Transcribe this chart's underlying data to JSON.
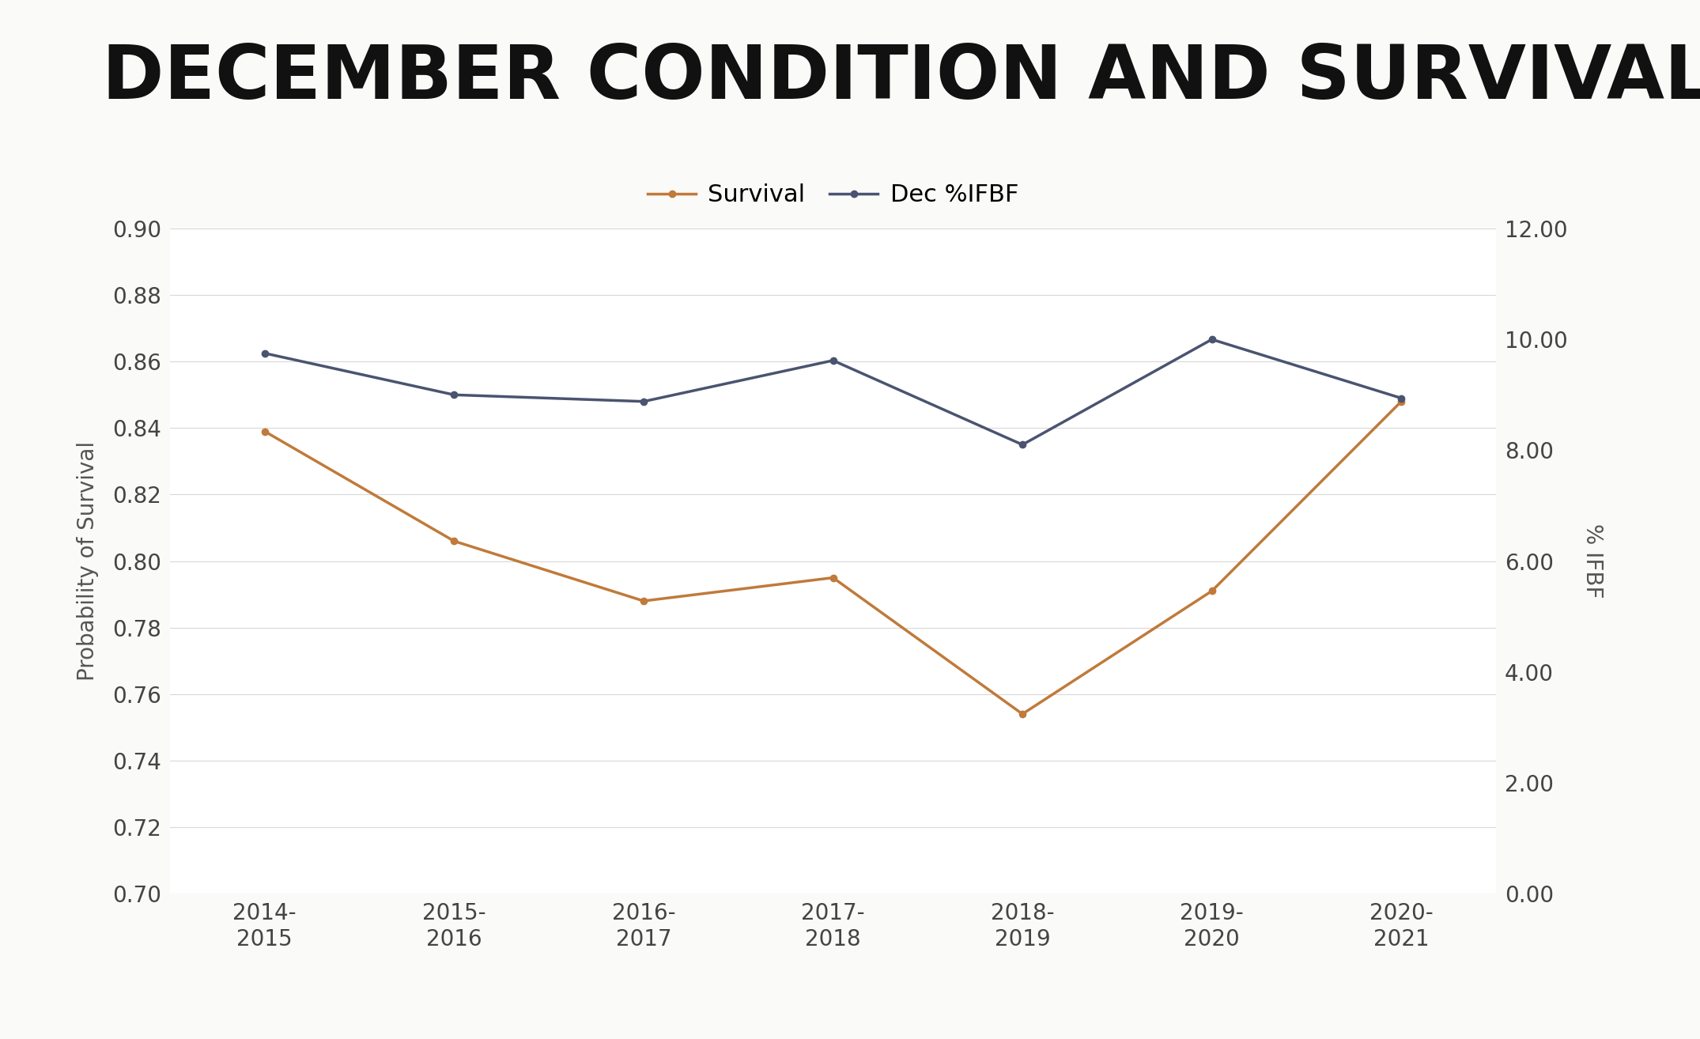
{
  "title": "DECEMBER CONDITION AND SURVIVAL",
  "categories": [
    "2014-\n2015",
    "2015-\n2016",
    "2016-\n2017",
    "2017-\n2018",
    "2018-\n2019",
    "2019-\n2020",
    "2020-\n2021"
  ],
  "survival": [
    0.839,
    0.806,
    0.788,
    0.795,
    0.754,
    0.791,
    0.848
  ],
  "dec_ifbf": [
    9.75,
    9.0,
    8.88,
    9.62,
    8.1,
    10.0,
    8.94
  ],
  "survival_color": "#C07A3A",
  "dec_ifbf_color": "#4A5470",
  "left_ylim": [
    0.7,
    0.9
  ],
  "left_yticks": [
    0.7,
    0.72,
    0.74,
    0.76,
    0.78,
    0.8,
    0.82,
    0.84,
    0.86,
    0.88,
    0.9
  ],
  "right_ylim": [
    0.0,
    12.0
  ],
  "right_yticks": [
    0.0,
    2.0,
    4.0,
    6.0,
    8.0,
    10.0,
    12.0
  ],
  "ylabel_left": "Probability of Survival",
  "ylabel_right": "% IFBF",
  "legend_survival": "Survival",
  "legend_dec": "Dec %IFBF",
  "figure_bg": "#FAFAF8",
  "plot_bg": "#FFFFFF",
  "grid_color": "#D8D8D8",
  "line_width": 2.5,
  "marker_size": 6,
  "title_fontsize": 68,
  "label_fontsize": 20,
  "tick_fontsize": 20,
  "legend_fontsize": 22
}
